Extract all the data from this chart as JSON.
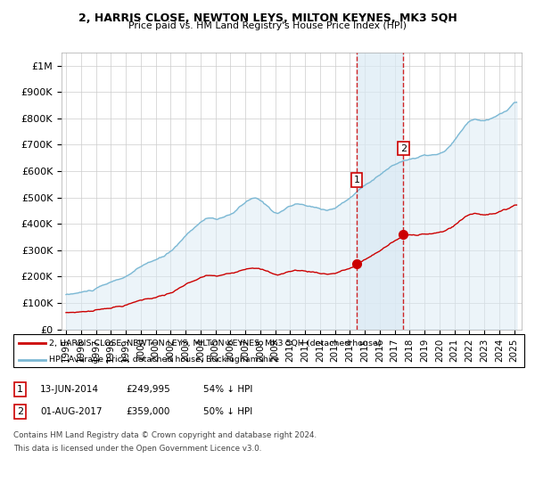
{
  "title": "2, HARRIS CLOSE, NEWTON LEYS, MILTON KEYNES, MK3 5QH",
  "subtitle": "Price paid vs. HM Land Registry's House Price Index (HPI)",
  "ylim": [
    0,
    1050000
  ],
  "yticks": [
    0,
    100000,
    200000,
    300000,
    400000,
    500000,
    600000,
    700000,
    800000,
    900000,
    1000000
  ],
  "ytick_labels": [
    "£0",
    "£100K",
    "£200K",
    "£300K",
    "£400K",
    "£500K",
    "£600K",
    "£700K",
    "£800K",
    "£900K",
    "£1M"
  ],
  "xlim_start": 1994.7,
  "xlim_end": 2025.5,
  "xticks": [
    1995,
    1996,
    1997,
    1998,
    1999,
    2000,
    2001,
    2002,
    2003,
    2004,
    2005,
    2006,
    2007,
    2008,
    2009,
    2010,
    2011,
    2012,
    2013,
    2014,
    2015,
    2016,
    2017,
    2018,
    2019,
    2020,
    2021,
    2022,
    2023,
    2024,
    2025
  ],
  "hpi_color": "#7bb8d4",
  "hpi_fill_color": "#daeaf4",
  "price_color": "#cc0000",
  "transaction1_price": 249995,
  "transaction1_x": 2014.45,
  "transaction2_price": 359000,
  "transaction2_x": 2017.58,
  "legend_line1": "2, HARRIS CLOSE, NEWTON LEYS, MILTON KEYNES, MK3 5QH (detached house)",
  "legend_line2": "HPI: Average price, detached house, Buckinghamshire",
  "footnote1": "Contains HM Land Registry data © Crown copyright and database right 2024.",
  "footnote2": "This data is licensed under the Open Government Licence v3.0.",
  "table_row1": [
    "1",
    "13-JUN-2014",
    "£249,995",
    "54% ↓ HPI"
  ],
  "table_row2": [
    "2",
    "01-AUG-2017",
    "£359,000",
    "50% ↓ HPI"
  ],
  "background_color": "#ffffff",
  "grid_color": "#cccccc"
}
